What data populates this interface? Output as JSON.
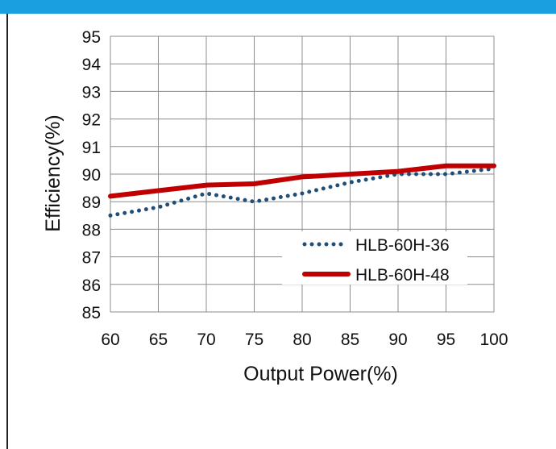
{
  "chart_data": {
    "type": "line",
    "title": "",
    "xlabel": "Output Power(%)",
    "ylabel": "Efficiency(%)",
    "x": [
      60,
      65,
      70,
      75,
      80,
      85,
      90,
      95,
      100
    ],
    "xlim": [
      60,
      100
    ],
    "ylim": [
      85,
      95
    ],
    "x_ticks": [
      "60",
      "65",
      "70",
      "75",
      "80",
      "85",
      "90",
      "95",
      "100"
    ],
    "y_ticks": [
      "95",
      "94",
      "93",
      "92",
      "91",
      "90",
      "89",
      "88",
      "87",
      "86",
      "85"
    ],
    "grid": true,
    "legend_position": "bottom-right",
    "series": [
      {
        "name": "HLB-60H-36",
        "style": "dotted",
        "color": "#1f4e79",
        "values": [
          88.5,
          88.8,
          89.3,
          89.0,
          89.3,
          89.7,
          90.0,
          90.0,
          90.2
        ]
      },
      {
        "name": "HLB-60H-48",
        "style": "solid",
        "color": "#c00000",
        "values": [
          89.2,
          89.4,
          89.6,
          89.65,
          89.9,
          90.0,
          90.1,
          90.3,
          90.3
        ]
      }
    ]
  }
}
